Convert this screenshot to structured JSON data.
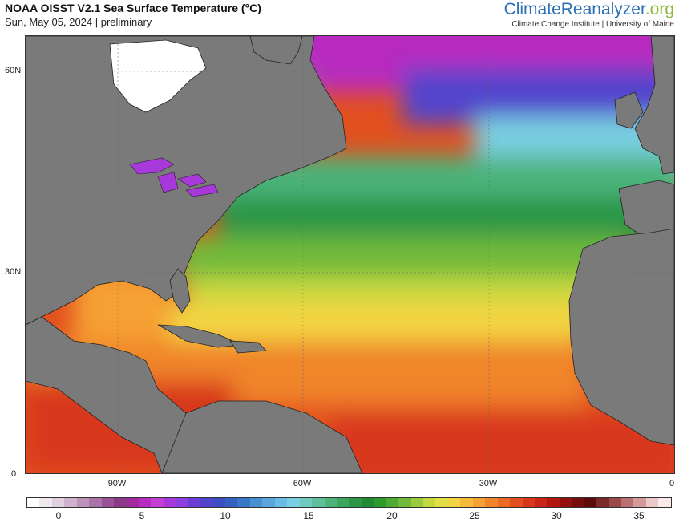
{
  "header": {
    "title": "NOAA OISST V2.1 Sea Surface Temperature (°C)",
    "subtitle": "Sun, May 05, 2024 | preliminary",
    "brand_part1": "Climate",
    "brand_part2": "Reanalyzer",
    "brand_part3": ".org",
    "brand_sub": "Climate Change Institute | University of Maine"
  },
  "map": {
    "lat_labels": [
      "60N",
      "30N",
      "0"
    ],
    "lon_labels": [
      "90W",
      "60W",
      "30W",
      "0"
    ],
    "land_color": "#7a7a7a",
    "ice_color": "#ffffff"
  },
  "colorbar": {
    "ticks": [
      "0",
      "5",
      "10",
      "15",
      "20",
      "25",
      "30",
      "35"
    ],
    "colors": [
      "#ffffff",
      "#efe8ee",
      "#e0cfdd",
      "#cfb2cd",
      "#bd93bc",
      "#aa73aa",
      "#9a5298",
      "#8c3a88",
      "#a22a9e",
      "#b82bc0",
      "#c43fd6",
      "#a738da",
      "#8d3fe0",
      "#6c3ed8",
      "#5245cc",
      "#3b4fc2",
      "#3560c2",
      "#3a76c8",
      "#4990d2",
      "#5aa6dc",
      "#69bde2",
      "#79cfe1",
      "#6fc9be",
      "#5ec09a",
      "#4cb47a",
      "#3ba65d",
      "#2c9646",
      "#1f8a32",
      "#2c9a2c",
      "#4daa34",
      "#71ba3a",
      "#9acb3c",
      "#c5d83f",
      "#e3de45",
      "#f3d443",
      "#f7bb3b",
      "#f5a032",
      "#f0852b",
      "#ea6a26",
      "#e2501f",
      "#d8381a",
      "#c92415",
      "#b01612",
      "#92100e",
      "#760c0c",
      "#5d0a0b",
      "#7a2a28",
      "#9a4a48",
      "#b87070",
      "#d49a9a",
      "#ecc8c8",
      "#fbeaea"
    ]
  }
}
